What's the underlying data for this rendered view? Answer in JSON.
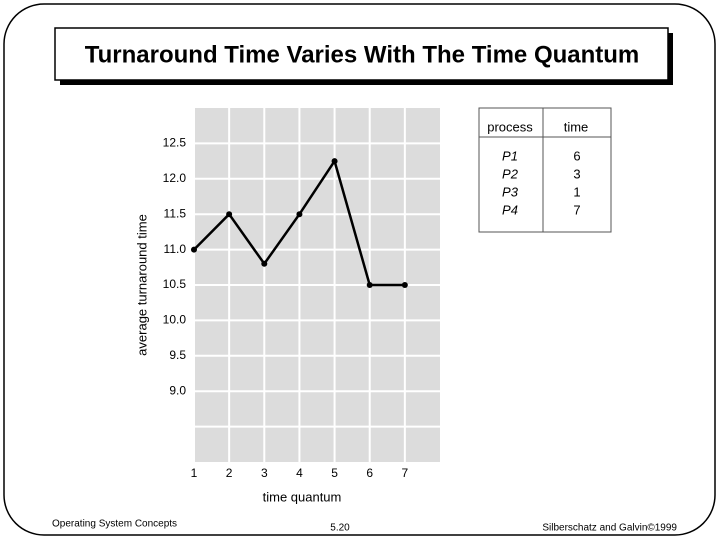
{
  "slide": {
    "title": "Turnaround Time Varies With The Time Quantum",
    "footer": {
      "left": "Operating System Concepts",
      "center": "5.20",
      "right": "Silberschatz and Galvin©1999"
    }
  },
  "chart_data": {
    "type": "line",
    "x": [
      1,
      2,
      3,
      4,
      5,
      6,
      7
    ],
    "values": [
      11.0,
      11.5,
      10.8,
      11.5,
      12.25,
      10.5,
      10.5
    ],
    "color": "#000000",
    "xlabel": "time quantum",
    "ylabel": "average turnaround time",
    "xlim": [
      1,
      8
    ],
    "ylim": [
      8,
      13
    ],
    "xticks": [
      1,
      2,
      3,
      4,
      5,
      6,
      7
    ],
    "yticks": [
      {
        "value": 8.5,
        "label": null
      },
      {
        "value": 9,
        "label": "9.0"
      },
      9.5,
      {
        "value": 10,
        "label": "10.0"
      },
      10.5,
      {
        "value": 11,
        "label": "11.0"
      },
      11.5,
      {
        "value": 12,
        "label": "12.0"
      },
      12.5
    ],
    "grid": true,
    "grid_color": "#ffffff",
    "background": "#dcdcdc"
  },
  "table": {
    "columns": [
      "process",
      "time"
    ],
    "rows": [
      [
        "P1",
        6
      ],
      [
        "P2",
        3
      ],
      [
        "P3",
        1
      ],
      [
        "P4",
        7
      ]
    ]
  }
}
